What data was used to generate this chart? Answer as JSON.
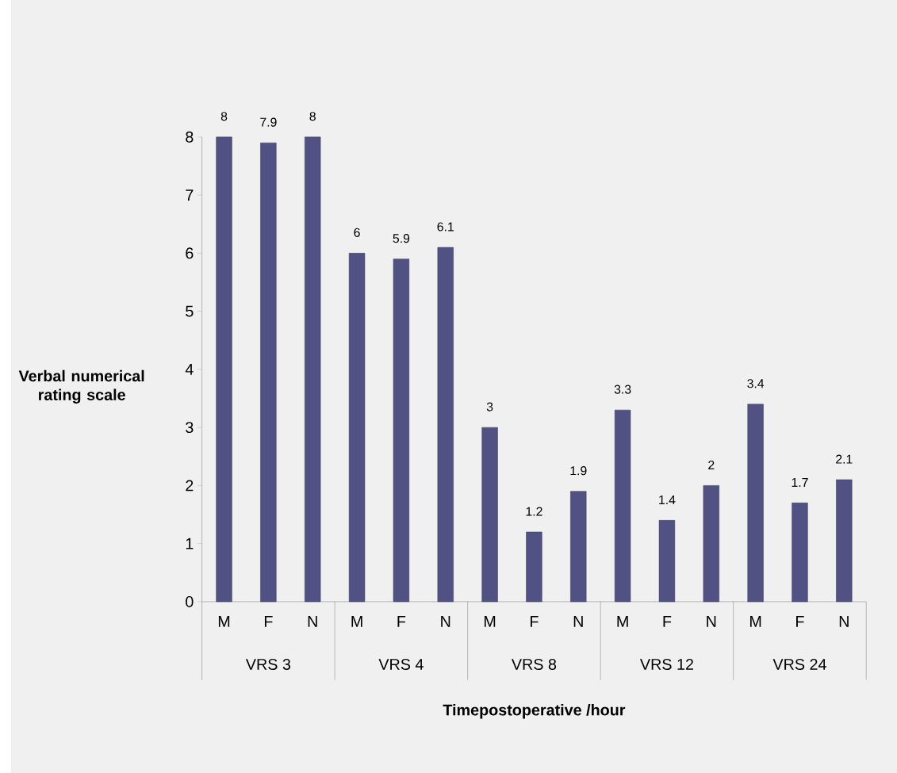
{
  "chart_data": {
    "type": "bar",
    "categories": [
      "M",
      "F",
      "N",
      "M",
      "F",
      "N",
      "M",
      "F",
      "N",
      "M",
      "F",
      "N",
      "M",
      "F",
      "N"
    ],
    "values": [
      8,
      7.9,
      8,
      6,
      5.9,
      6.1,
      3,
      1.2,
      1.9,
      3.3,
      1.4,
      2,
      3.4,
      1.7,
      2.1
    ],
    "color": "#515184",
    "ylim": [
      0,
      8
    ],
    "yticks": [
      0,
      1,
      2,
      3,
      4,
      5,
      6,
      7,
      8
    ],
    "data_labels": true,
    "xlabel": "Timepostoperative /hour",
    "ylabel": "Verbal numerical rating scale",
    "annotations": [
      "VRS 3",
      "VRS 4",
      "VRS 8",
      "VRS 12",
      "VRS 24"
    ],
    "grid": false
  }
}
